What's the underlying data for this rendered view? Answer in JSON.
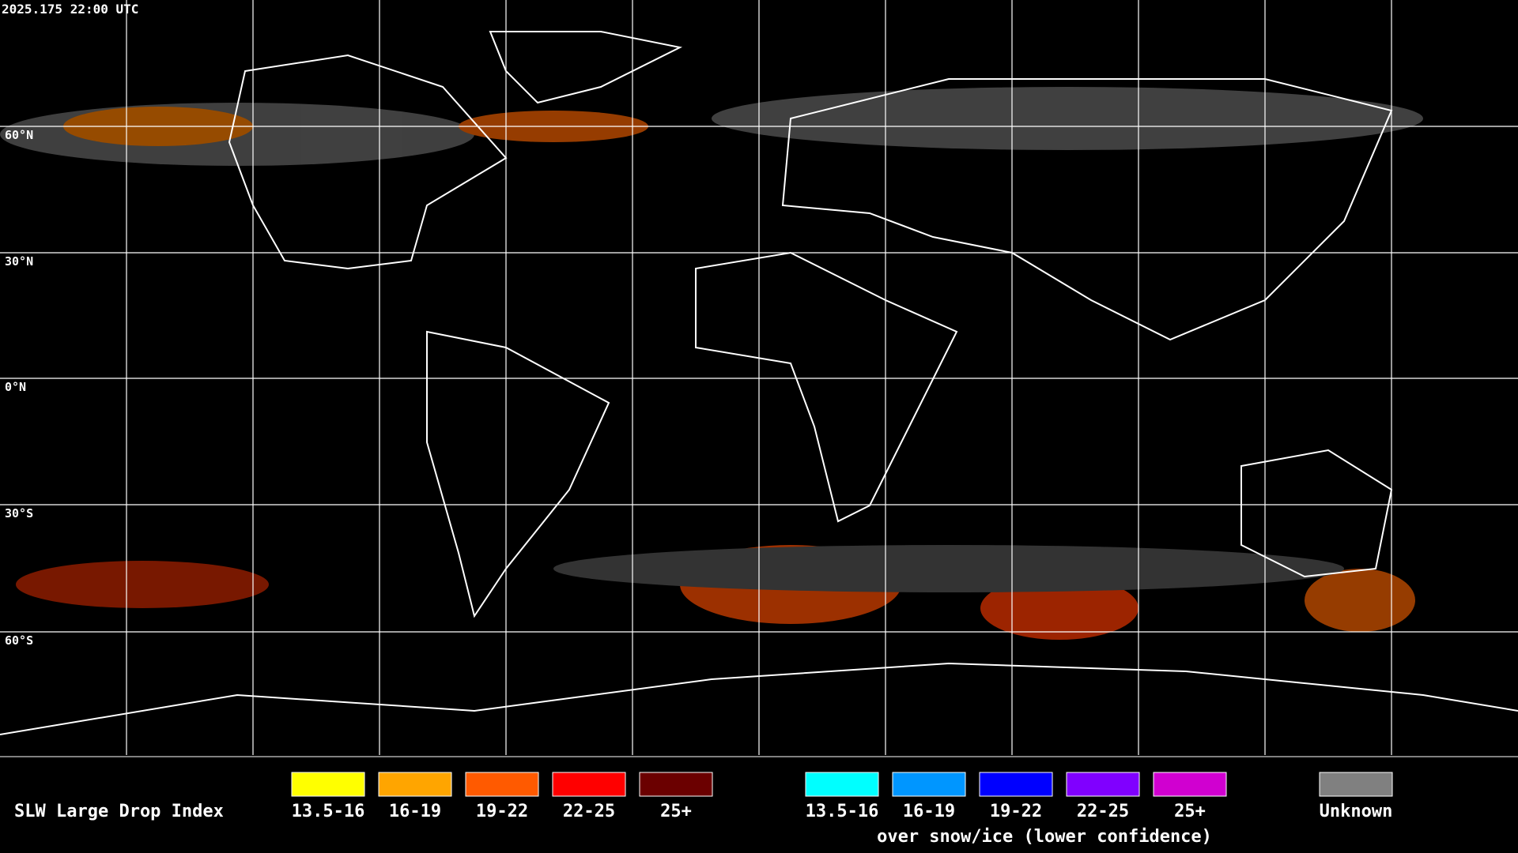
{
  "header": {
    "timestamp": "2025.175 22:00 UTC"
  },
  "map": {
    "lat_labels": [
      "60°N",
      "30°N",
      "0°N",
      "30°S",
      "60°S"
    ]
  },
  "legend": {
    "title": "SLW Large Drop Index",
    "liquid": [
      {
        "label": "13.5-16",
        "color": "#ffff00"
      },
      {
        "label": "16-19",
        "color": "#ffa500"
      },
      {
        "label": "19-22",
        "color": "#ff5a00"
      },
      {
        "label": "22-25",
        "color": "#ff0000"
      },
      {
        "label": "25+",
        "color": "#6b0000"
      }
    ],
    "ice": [
      {
        "label": "13.5-16",
        "color": "#00ffff"
      },
      {
        "label": "16-19",
        "color": "#0096ff"
      },
      {
        "label": "19-22",
        "color": "#0000ff"
      },
      {
        "label": "22-25",
        "color": "#8000ff"
      },
      {
        "label": "25+",
        "color": "#d000d0"
      }
    ],
    "ice_caption": "over snow/ice (lower confidence)",
    "unknown": {
      "label": "Unknown",
      "color": "#808080"
    }
  }
}
